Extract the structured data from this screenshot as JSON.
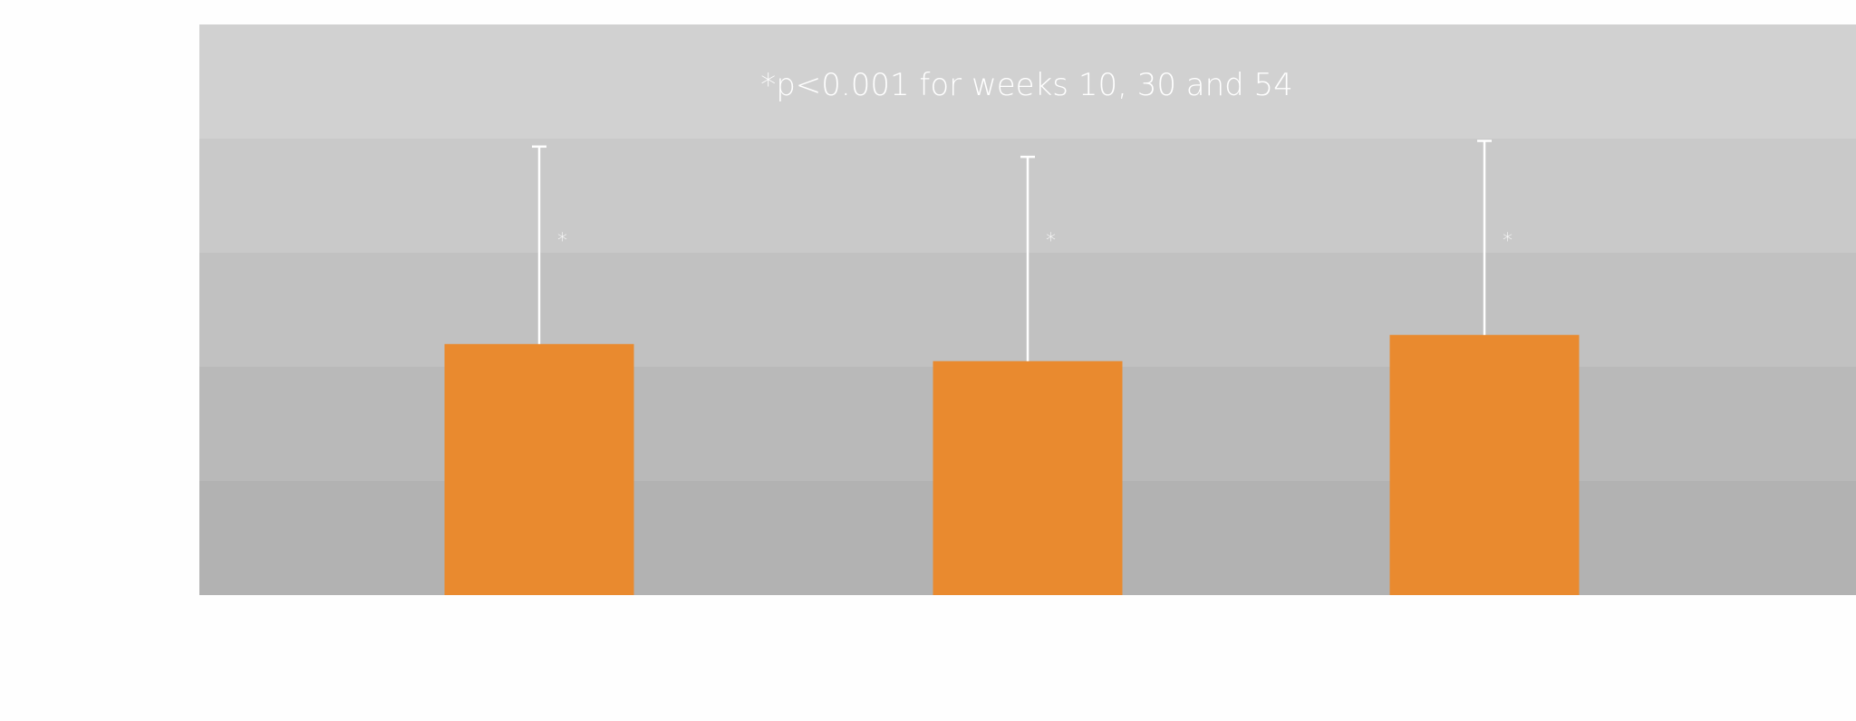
{
  "chart_data": {
    "type": "bar",
    "categories": [
      "",
      "",
      ""
    ],
    "series": [
      {
        "values": [
          2.2,
          2.05,
          2.28
        ],
        "error_upper": [
          3.93,
          3.84,
          3.98
        ],
        "color": "#e98a2f"
      }
    ],
    "ylim": [
      0,
      5
    ],
    "grid": true,
    "legend": "none",
    "band_colors": [
      "#b2b2b2",
      "#b9b9b9",
      "#c1c1c1",
      "#c9c9c9",
      "#d1d1d1"
    ],
    "error_bar_color": "#ffffff",
    "annotation": "*p<0.001 for weeks 10, 30 and 54",
    "significance_marks": [
      "*",
      "*",
      "*"
    ]
  }
}
